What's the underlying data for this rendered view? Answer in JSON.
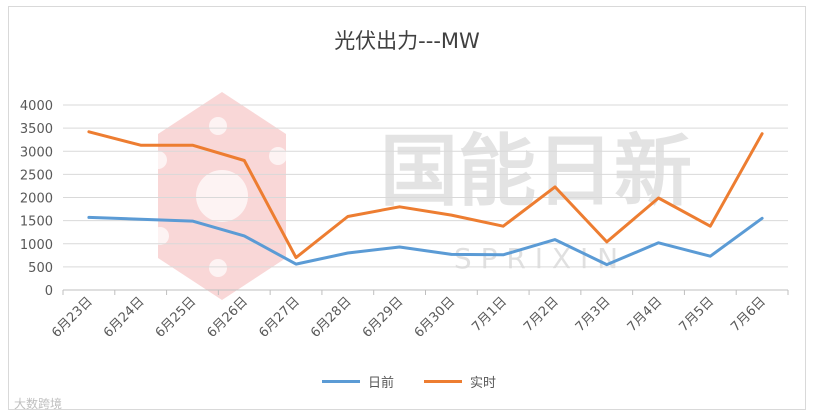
{
  "chart_data": {
    "type": "line",
    "title": "光伏出力---MW",
    "categories": [
      "6月23日",
      "6月24日",
      "6月25日",
      "6月26日",
      "6月27日",
      "6月28日",
      "6月29日",
      "6月30日",
      "7月1日",
      "7月2日",
      "7月3日",
      "7月4日",
      "7月5日",
      "7月6日"
    ],
    "series": [
      {
        "name": "日前",
        "color": "#5b9bd5",
        "values": [
          1570,
          1530,
          1490,
          1170,
          560,
          800,
          930,
          770,
          760,
          1090,
          550,
          1020,
          730,
          1550
        ]
      },
      {
        "name": "实时",
        "color": "#ed7d31",
        "values": [
          3420,
          3130,
          3130,
          2800,
          700,
          1590,
          1800,
          1620,
          1380,
          2230,
          1040,
          1990,
          1380,
          3380
        ]
      }
    ],
    "ylim": [
      0,
      4000
    ],
    "yticks": [
      0,
      500,
      1000,
      1500,
      2000,
      2500,
      3000,
      3500,
      4000
    ],
    "grid": "horizontal",
    "legend": "bottom"
  },
  "watermark": {
    "brand_text": "国能日新",
    "sub_text": "S P R I X I N",
    "corner_text": "大数跨境"
  }
}
